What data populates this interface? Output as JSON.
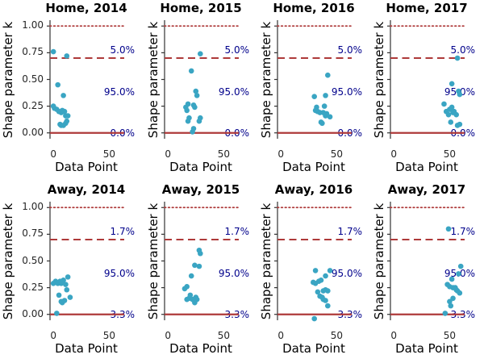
{
  "chart_data": {
    "type": "scatter",
    "grid": "2 rows x 4 columns",
    "xlabel": "Data Point",
    "ylabel": "Shape parameter k",
    "xlim": [
      -3,
      62
    ],
    "ylim": [
      -0.055,
      1.055
    ],
    "xticks": [
      0,
      50
    ],
    "xtick_labels": [
      "0",
      "50"
    ],
    "ytick_values": [
      0.0,
      0.25,
      0.5,
      0.75,
      1.0
    ],
    "ytick_labels": [
      "0.00",
      "0.25",
      "0.50",
      "0.75",
      "1.00"
    ],
    "hlines": [
      {
        "y": 1.0,
        "style": "dotted"
      },
      {
        "y": 0.7,
        "style": "dashed"
      },
      {
        "y": 0.0,
        "style": "solid"
      }
    ],
    "annotation_y": {
      "upper": 0.765,
      "mid": 0.375,
      "lower": -0.012
    },
    "colors": {
      "line": "#ae3a3a",
      "marker": "#3aa5c3",
      "annotation": "#00008b",
      "spine": "#333333",
      "tick_text": "#262626",
      "title_text": "#000000"
    },
    "plots": [
      {
        "title": "Home, 2014",
        "annotations": {
          "upper": "5.0%",
          "mid": "95.0%",
          "lower": "0.0%"
        },
        "points": [
          [
            0,
            0.76
          ],
          [
            12,
            0.72
          ],
          [
            4,
            0.45
          ],
          [
            9,
            0.35
          ],
          [
            0,
            0.25
          ],
          [
            1,
            0.23
          ],
          [
            3,
            0.22
          ],
          [
            5,
            0.2
          ],
          [
            7,
            0.19
          ],
          [
            8,
            0.21
          ],
          [
            10,
            0.2
          ],
          [
            11,
            0.16
          ],
          [
            13,
            0.16
          ],
          [
            6,
            0.08
          ],
          [
            7,
            0.07
          ],
          [
            9,
            0.07
          ],
          [
            11,
            0.09
          ],
          [
            12,
            0.11
          ]
        ]
      },
      {
        "title": "Home, 2015",
        "annotations": {
          "upper": "5.0%",
          "mid": "95.0%",
          "lower": "0.0%"
        },
        "points": [
          [
            29,
            0.74
          ],
          [
            21,
            0.58
          ],
          [
            25,
            0.39
          ],
          [
            26,
            0.35
          ],
          [
            18,
            0.27
          ],
          [
            16,
            0.24
          ],
          [
            17,
            0.21
          ],
          [
            23,
            0.26
          ],
          [
            24,
            0.24
          ],
          [
            19,
            0.14
          ],
          [
            18,
            0.11
          ],
          [
            29,
            0.14
          ],
          [
            28,
            0.11
          ],
          [
            23,
            0.04
          ],
          [
            22,
            0.01
          ]
        ]
      },
      {
        "title": "Home, 2016",
        "annotations": {
          "upper": "5.0%",
          "mid": "95.0%",
          "lower": "0.0%"
        },
        "points": [
          [
            42,
            0.54
          ],
          [
            30,
            0.34
          ],
          [
            40,
            0.35
          ],
          [
            31,
            0.21
          ],
          [
            32,
            0.24
          ],
          [
            33,
            0.2
          ],
          [
            35,
            0.19
          ],
          [
            38,
            0.19
          ],
          [
            39,
            0.25
          ],
          [
            40,
            0.16
          ],
          [
            41,
            0.18
          ],
          [
            44,
            0.15
          ],
          [
            36,
            0.1
          ],
          [
            37,
            0.09
          ]
        ]
      },
      {
        "title": "Home, 2017",
        "annotations": {
          "upper": "5.0%",
          "mid": "95.0%",
          "lower": "0.0%"
        },
        "points": [
          [
            57,
            0.7
          ],
          [
            52,
            0.46
          ],
          [
            58,
            0.39
          ],
          [
            59,
            0.36
          ],
          [
            45,
            0.27
          ],
          [
            47,
            0.2
          ],
          [
            49,
            0.17
          ],
          [
            50,
            0.22
          ],
          [
            52,
            0.24
          ],
          [
            53,
            0.19
          ],
          [
            54,
            0.2
          ],
          [
            56,
            0.17
          ],
          [
            51,
            0.1
          ],
          [
            57,
            0.07
          ],
          [
            59,
            0.08
          ]
        ]
      },
      {
        "title": "Away, 2014",
        "annotations": {
          "upper": "1.7%",
          "mid": "95.0%",
          "lower": "3.3%"
        },
        "points": [
          [
            0,
            0.29
          ],
          [
            2,
            0.31
          ],
          [
            4,
            0.29
          ],
          [
            6,
            0.31
          ],
          [
            7,
            0.29
          ],
          [
            9,
            0.32
          ],
          [
            13,
            0.35
          ],
          [
            11,
            0.28
          ],
          [
            12,
            0.23
          ],
          [
            5,
            0.18
          ],
          [
            7,
            0.12
          ],
          [
            8,
            0.11
          ],
          [
            10,
            0.13
          ],
          [
            15,
            0.16
          ],
          [
            3,
            0.01
          ]
        ]
      },
      {
        "title": "Away, 2015",
        "annotations": {
          "upper": "1.7%",
          "mid": "95.0%",
          "lower": "3.3%"
        },
        "points": [
          [
            28,
            0.6
          ],
          [
            29,
            0.57
          ],
          [
            24,
            0.46
          ],
          [
            28,
            0.45
          ],
          [
            21,
            0.36
          ],
          [
            15,
            0.24
          ],
          [
            17,
            0.26
          ],
          [
            19,
            0.15
          ],
          [
            17,
            0.14
          ],
          [
            20,
            0.18
          ],
          [
            22,
            0.14
          ],
          [
            23,
            0.14
          ],
          [
            25,
            0.16
          ],
          [
            26,
            0.14
          ],
          [
            24,
            0.11
          ]
        ]
      },
      {
        "title": "Away, 2016",
        "annotations": {
          "upper": "1.7%",
          "mid": "95.0%",
          "lower": "3.3%"
        },
        "points": [
          [
            31,
            0.41
          ],
          [
            44,
            0.41
          ],
          [
            40,
            0.36
          ],
          [
            29,
            0.3
          ],
          [
            31,
            0.29
          ],
          [
            34,
            0.31
          ],
          [
            36,
            0.32
          ],
          [
            38,
            0.22
          ],
          [
            40,
            0.23
          ],
          [
            42,
            0.22
          ],
          [
            33,
            0.21
          ],
          [
            35,
            0.17
          ],
          [
            37,
            0.16
          ],
          [
            38,
            0.14
          ],
          [
            40,
            0.13
          ],
          [
            42,
            0.08
          ],
          [
            30,
            -0.04
          ]
        ]
      },
      {
        "title": "Away, 2017",
        "annotations": {
          "upper": "1.7%",
          "mid": "95.0%",
          "lower": "3.3%"
        },
        "points": [
          [
            49,
            0.8
          ],
          [
            60,
            0.45
          ],
          [
            58,
            0.38
          ],
          [
            52,
            0.33
          ],
          [
            48,
            0.28
          ],
          [
            50,
            0.26
          ],
          [
            53,
            0.25
          ],
          [
            55,
            0.25
          ],
          [
            56,
            0.23
          ],
          [
            57,
            0.22
          ],
          [
            59,
            0.2
          ],
          [
            53,
            0.15
          ],
          [
            50,
            0.12
          ],
          [
            51,
            0.08
          ],
          [
            46,
            0.01
          ]
        ]
      }
    ]
  }
}
